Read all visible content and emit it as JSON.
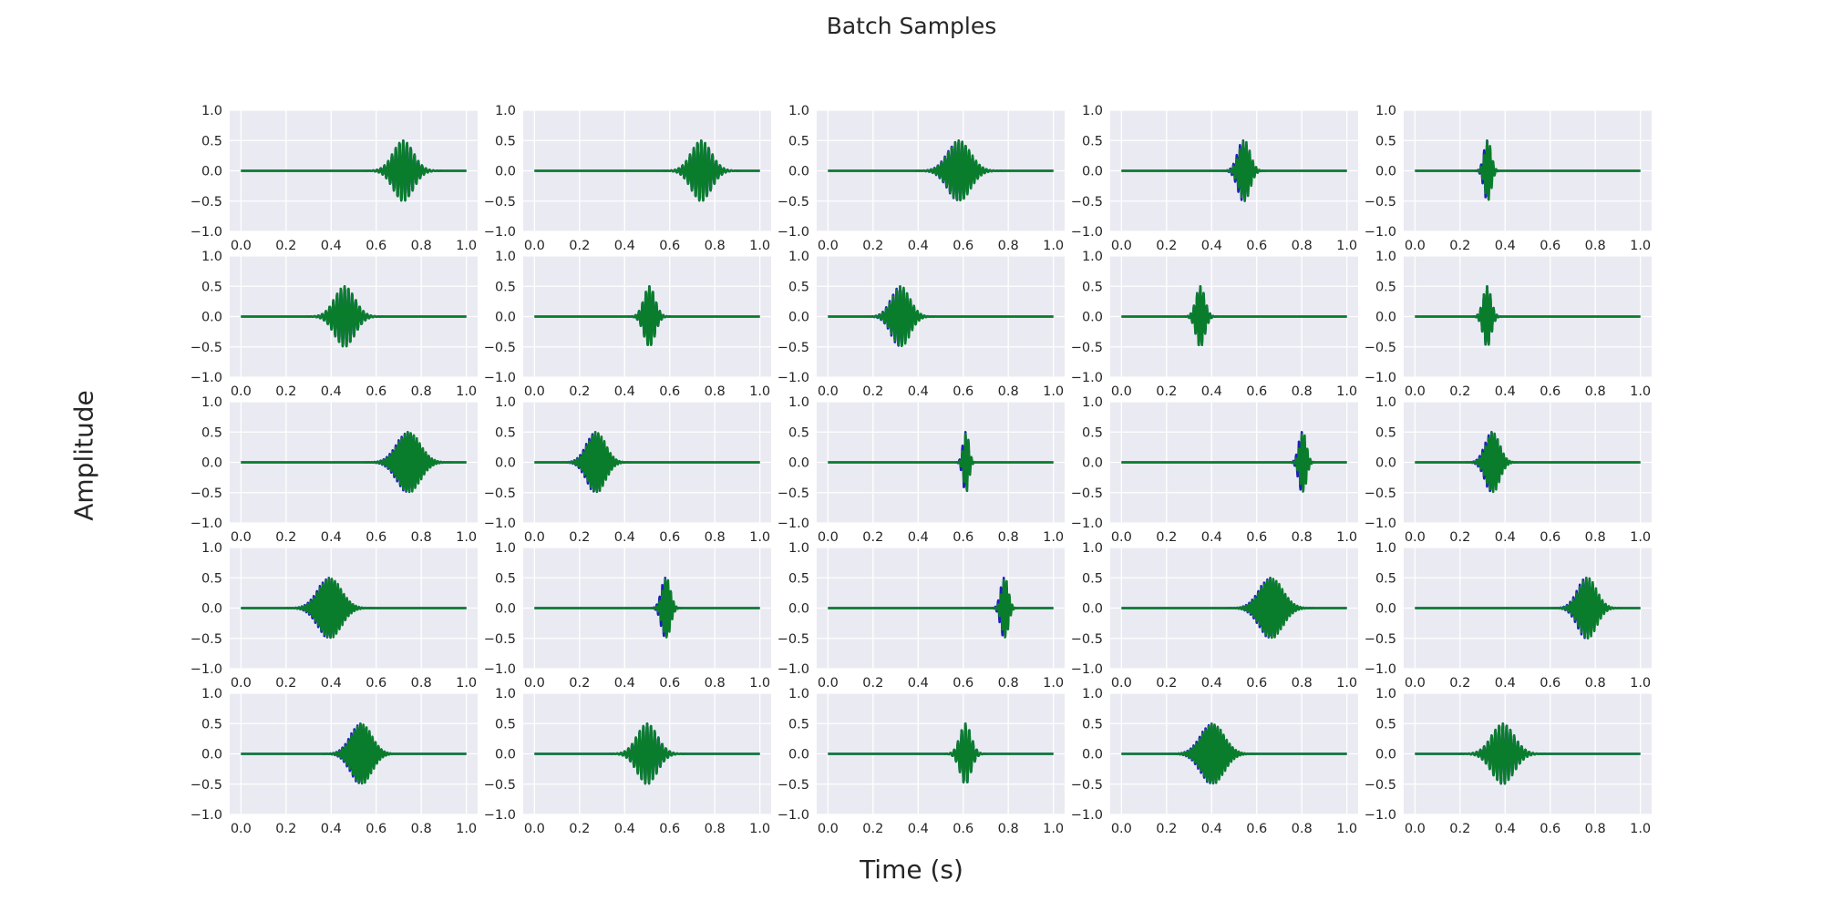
{
  "chart_data": {
    "type": "line",
    "title": "Batch Samples",
    "xlabel": "Time (s)",
    "ylabel": "Amplitude",
    "layout": "5x5 small multiples",
    "xlim": [
      0.0,
      1.0
    ],
    "ylim": [
      -1.0,
      1.0
    ],
    "xticks": [
      "0.0",
      "0.2",
      "0.4",
      "0.6",
      "0.8",
      "1.0"
    ],
    "yticks": [
      "1.0",
      "0.5",
      "0.0",
      "−0.5",
      "−1.0"
    ],
    "grid": true,
    "background": "#eaeaf2",
    "series_colors": {
      "reference": "#1f1fbf",
      "overlay": "#0a7d2c"
    },
    "series_description": "Each panel shows a Gaussian-windowed sinusoidal burst (peak amplitude ~0.5) drawn twice: a blue trace overlaid by a green trace.",
    "panels": [
      {
        "center": 0.72,
        "width": 0.045,
        "freq": 60,
        "green_shift": 0.0
      },
      {
        "center": 0.74,
        "width": 0.045,
        "freq": 60,
        "green_shift": 0.0
      },
      {
        "center": 0.58,
        "width": 0.05,
        "freq": 65,
        "green_shift": 0.003
      },
      {
        "center": 0.54,
        "width": 0.025,
        "freq": 70,
        "green_shift": 0.006
      },
      {
        "center": 0.32,
        "width": 0.015,
        "freq": 75,
        "green_shift": 0.004
      },
      {
        "center": 0.46,
        "width": 0.045,
        "freq": 60,
        "green_shift": 0.0
      },
      {
        "center": 0.51,
        "width": 0.025,
        "freq": 65,
        "green_shift": 0.0
      },
      {
        "center": 0.32,
        "width": 0.04,
        "freq": 65,
        "green_shift": 0.004
      },
      {
        "center": 0.35,
        "width": 0.02,
        "freq": 70,
        "green_shift": 0.0
      },
      {
        "center": 0.32,
        "width": 0.018,
        "freq": 70,
        "green_shift": 0.0
      },
      {
        "center": 0.74,
        "width": 0.05,
        "freq": 75,
        "green_shift": 0.006
      },
      {
        "center": 0.27,
        "width": 0.04,
        "freq": 75,
        "green_shift": 0.006
      },
      {
        "center": 0.61,
        "width": 0.012,
        "freq": 75,
        "green_shift": 0.004
      },
      {
        "center": 0.8,
        "width": 0.015,
        "freq": 80,
        "green_shift": 0.006
      },
      {
        "center": 0.34,
        "width": 0.03,
        "freq": 75,
        "green_shift": 0.006
      },
      {
        "center": 0.39,
        "width": 0.05,
        "freq": 75,
        "green_shift": 0.006
      },
      {
        "center": 0.58,
        "width": 0.018,
        "freq": 80,
        "green_shift": 0.006
      },
      {
        "center": 0.78,
        "width": 0.015,
        "freq": 80,
        "green_shift": 0.006
      },
      {
        "center": 0.66,
        "width": 0.05,
        "freq": 75,
        "green_shift": 0.006
      },
      {
        "center": 0.76,
        "width": 0.04,
        "freq": 70,
        "green_shift": 0.006
      },
      {
        "center": 0.53,
        "width": 0.045,
        "freq": 75,
        "green_shift": 0.006
      },
      {
        "center": 0.5,
        "width": 0.045,
        "freq": 60,
        "green_shift": 0.0
      },
      {
        "center": 0.61,
        "width": 0.025,
        "freq": 60,
        "green_shift": 0.0
      },
      {
        "center": 0.4,
        "width": 0.05,
        "freq": 75,
        "green_shift": 0.006
      },
      {
        "center": 0.39,
        "width": 0.05,
        "freq": 60,
        "green_shift": 0.0
      }
    ]
  }
}
